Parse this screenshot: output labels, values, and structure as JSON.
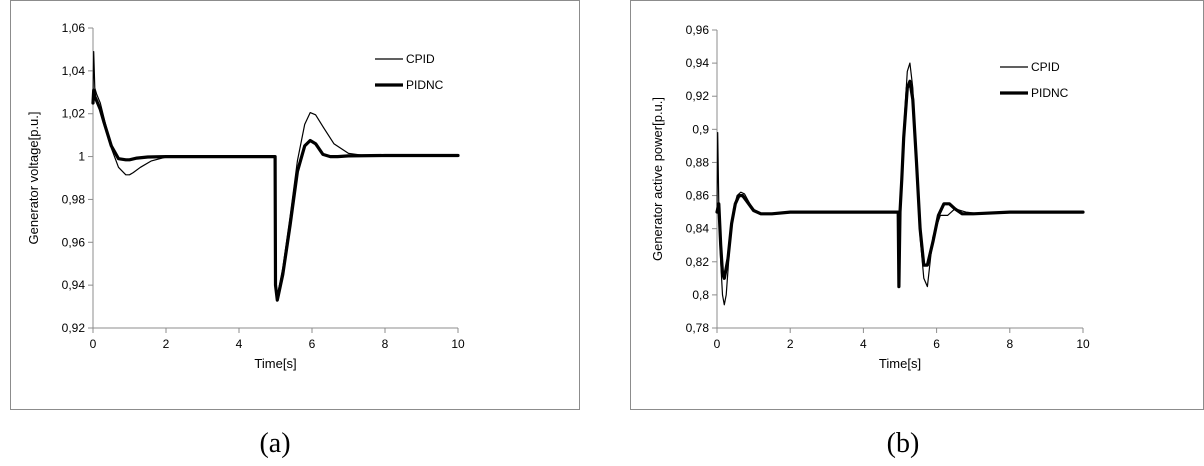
{
  "chart_data": [
    {
      "type": "line",
      "panel_label": "(a)",
      "xlabel": "Time[s]",
      "ylabel": "Generator voltage[p.u.]",
      "xlim": [
        0,
        10
      ],
      "ylim": [
        0.92,
        1.06
      ],
      "xticks": [
        0,
        2,
        4,
        6,
        8,
        10
      ],
      "yticks": [
        0.92,
        0.94,
        0.96,
        0.98,
        1,
        1.02,
        1.04,
        1.06
      ],
      "x_tick_labels": [
        "0",
        "2",
        "4",
        "6",
        "8",
        "10"
      ],
      "y_tick_labels": [
        "0,92",
        "0,94",
        "0,96",
        "0,98",
        "1",
        "1,02",
        "1,04",
        "1,06"
      ],
      "grid": false,
      "legend_position": "top-right",
      "series": [
        {
          "name": "CPID",
          "style": "thin",
          "x": [
            0,
            0.02,
            0.05,
            0.1,
            0.2,
            0.3,
            0.5,
            0.7,
            0.9,
            1.0,
            1.1,
            1.3,
            1.6,
            2.0,
            2.5,
            3,
            4,
            4.99,
            5.0,
            5.05,
            5.2,
            5.4,
            5.6,
            5.8,
            5.95,
            6.1,
            6.3,
            6.6,
            7.0,
            7.5,
            8,
            9,
            10
          ],
          "y": [
            1.028,
            1.049,
            1.032,
            1.029,
            1.025,
            1.018,
            1.004,
            0.995,
            0.9915,
            0.9915,
            0.9925,
            0.995,
            0.998,
            0.9998,
            1.0003,
            1.0002,
            1.0,
            1.0,
            0.94,
            0.935,
            0.948,
            0.972,
            0.998,
            1.015,
            1.0205,
            1.0195,
            1.014,
            1.006,
            1.0015,
            1.0003,
            1.0008,
            1.0006,
            1.0008
          ]
        },
        {
          "name": "PIDNC",
          "style": "thick",
          "x": [
            0,
            0.02,
            0.05,
            0.1,
            0.2,
            0.3,
            0.5,
            0.7,
            0.9,
            1.0,
            1.2,
            1.5,
            2.0,
            3,
            4,
            4.99,
            5.0,
            5.05,
            5.2,
            5.4,
            5.6,
            5.8,
            5.95,
            6.1,
            6.3,
            6.5,
            6.7,
            7.0,
            8,
            9,
            10
          ],
          "y": [
            1.025,
            1.031,
            1.028,
            1.026,
            1.022,
            1.016,
            1.005,
            0.999,
            0.9985,
            0.9985,
            0.9993,
            0.9998,
            1.0,
            1.0,
            1.0,
            1.0,
            0.94,
            0.933,
            0.945,
            0.968,
            0.993,
            1.005,
            1.0075,
            1.006,
            1.001,
            1.0,
            1.0,
            1.0003,
            1.0005,
            1.0005,
            1.0005
          ]
        }
      ]
    },
    {
      "type": "line",
      "panel_label": "(b)",
      "xlabel": "Time[s]",
      "ylabel": "Generator active power[p.u.]",
      "xlim": [
        0,
        10
      ],
      "ylim": [
        0.78,
        0.96
      ],
      "xticks": [
        0,
        2,
        4,
        6,
        8,
        10
      ],
      "yticks": [
        0.78,
        0.8,
        0.82,
        0.84,
        0.86,
        0.88,
        0.9,
        0.92,
        0.94,
        0.96
      ],
      "x_tick_labels": [
        "0",
        "2",
        "4",
        "6",
        "8",
        "10"
      ],
      "y_tick_labels": [
        "0,78",
        "0,8",
        "0,82",
        "0,84",
        "0,86",
        "0,88",
        "0,9",
        "0,92",
        "0,94",
        "0,96"
      ],
      "grid": false,
      "legend_position": "top-right",
      "series": [
        {
          "name": "CPID",
          "style": "thin",
          "x": [
            0,
            0.02,
            0.05,
            0.1,
            0.15,
            0.2,
            0.25,
            0.35,
            0.45,
            0.55,
            0.65,
            0.75,
            0.85,
            1.0,
            1.2,
            1.5,
            2.0,
            3,
            4,
            4.95,
            4.97,
            5.0,
            5.05,
            5.1,
            5.2,
            5.27,
            5.35,
            5.45,
            5.55,
            5.65,
            5.75,
            5.9,
            6.1,
            6.3,
            6.5,
            6.8,
            7.2,
            8,
            9,
            10
          ],
          "y": [
            0.85,
            0.898,
            0.855,
            0.82,
            0.8,
            0.794,
            0.8,
            0.83,
            0.852,
            0.86,
            0.862,
            0.861,
            0.857,
            0.851,
            0.849,
            0.849,
            0.85,
            0.85,
            0.85,
            0.85,
            0.805,
            0.85,
            0.87,
            0.9,
            0.935,
            0.94,
            0.925,
            0.88,
            0.835,
            0.81,
            0.805,
            0.835,
            0.848,
            0.848,
            0.852,
            0.85,
            0.849,
            0.85,
            0.85,
            0.85
          ]
        },
        {
          "name": "PIDNC",
          "style": "thick",
          "x": [
            0,
            0.05,
            0.1,
            0.15,
            0.2,
            0.3,
            0.4,
            0.5,
            0.6,
            0.7,
            0.8,
            1.0,
            1.2,
            1.5,
            2.0,
            3,
            4,
            4.95,
            4.97,
            5.0,
            5.05,
            5.1,
            5.2,
            5.27,
            5.35,
            5.45,
            5.55,
            5.65,
            5.75,
            5.9,
            6.05,
            6.2,
            6.35,
            6.5,
            6.7,
            7.0,
            8,
            9,
            10
          ],
          "y": [
            0.85,
            0.855,
            0.83,
            0.813,
            0.81,
            0.822,
            0.843,
            0.855,
            0.86,
            0.86,
            0.857,
            0.851,
            0.849,
            0.849,
            0.85,
            0.85,
            0.85,
            0.85,
            0.805,
            0.85,
            0.87,
            0.895,
            0.925,
            0.929,
            0.918,
            0.88,
            0.84,
            0.818,
            0.818,
            0.832,
            0.848,
            0.855,
            0.855,
            0.852,
            0.849,
            0.849,
            0.85,
            0.85,
            0.85
          ]
        }
      ]
    }
  ]
}
